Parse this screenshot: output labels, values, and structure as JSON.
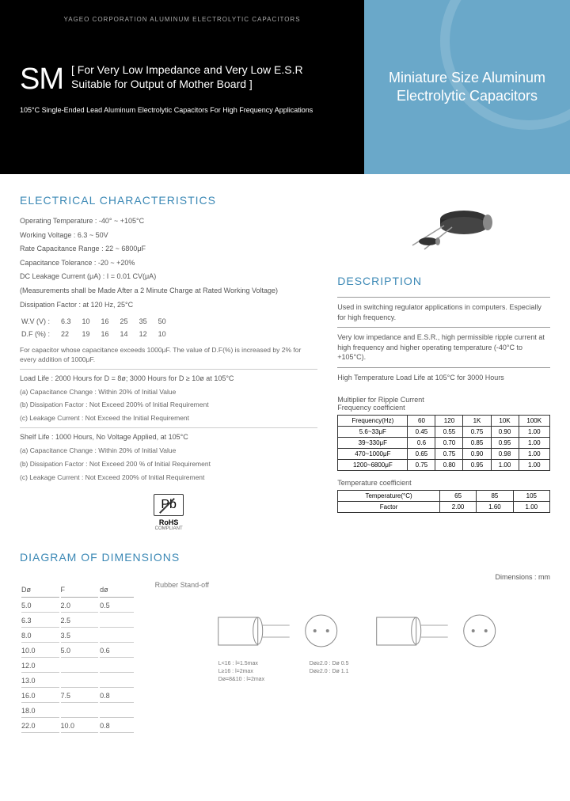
{
  "header": {
    "corp": "YAGEO CORPORATION ALUMINUM ELECTROLYTIC CAPACITORS",
    "badge": "SM",
    "desc": "[ For Very Low Impedance and Very Low E.S.R Suitable for Output of Mother Board ]",
    "sub": "105°C Single-Ended Lead Aluminum Electrolytic Capacitors For High Frequency Applications",
    "right_title": "Miniature Size Aluminum Electrolytic Capacitors",
    "colors": {
      "left_bg": "#000000",
      "right_bg": "#6aa8c9",
      "accent": "#3b88b5"
    }
  },
  "electrical": {
    "title": "ELECTRICAL CHARACTERISTICS",
    "lines": [
      "Operating Temperature : -40° ~ +105°C",
      "Working Voltage : 6.3 ~ 50V",
      "Rate Capacitance Range : 22 ~ 6800μF",
      "Capacitance Tolerance : -20 ~ +20%",
      "DC Leakage Current (μA) : I = 0.01 CV(μA)",
      "(Measurements shall be Made After a 2 Minute Charge at Rated Working Voltage)"
    ],
    "df_label": "Dissipation Factor : at 120 Hz, 25°C",
    "df_headers": [
      "W.V (V) :",
      "6.3",
      "10",
      "16",
      "25",
      "35",
      "50"
    ],
    "df_values": [
      "D.F (%) :",
      "22",
      "19",
      "16",
      "14",
      "12",
      "10"
    ],
    "df_note": "For capacitor whose capacitance exceeds 1000μF. The value of D.F(%) is increased by 2% for every addition of 1000μF.",
    "load_life": "Load Life : 2000 Hours for D = 8ø; 3000 Hours for D ≥ 10ø at 105°C",
    "load_items": [
      "(a) Capacitance Change : Within 20% of Initial Value",
      "(b) Dissipation Factor : Not Exceed 200% of Initial Requirement",
      "(c) Leakage Current : Not Exceed the Initial Requirement"
    ],
    "shelf_life": "Shelf Life : 1000 Hours, No Voltage Applied, at 105°C",
    "shelf_items": [
      "(a) Capacitance Change : Within 20% of Initial Value",
      "(b) Dissipation Factor : Not Exceed 200 % of Initial Requirement",
      "(c) Leakage Current : Not Exceed 200% of Initial Requirement"
    ]
  },
  "description": {
    "title": "DESCRIPTION",
    "items": [
      "Used in switching regulator applications in computers. Especially for high frequency.",
      "Very low impedance and E.S.R., high permissible ripple current at high frequency and higher operating temperature (-40°C to +105°C).",
      "High Temperature Load Life at 105°C for 3000 Hours"
    ]
  },
  "ripple": {
    "label1": "Multiplier for Ripple Current",
    "label2": "Frequency coefficient",
    "freq_headers": [
      "Frequency(Hz)",
      "60",
      "120",
      "1K",
      "10K",
      "100K"
    ],
    "freq_rows": [
      [
        "5.6~33μF",
        "0.45",
        "0.55",
        "0.75",
        "0.90",
        "1.00"
      ],
      [
        "39~330μF",
        "0.6",
        "0.70",
        "0.85",
        "0.95",
        "1.00"
      ],
      [
        "470~1000μF",
        "0.65",
        "0.75",
        "0.90",
        "0.98",
        "1.00"
      ],
      [
        "1200~6800μF",
        "0.75",
        "0.80",
        "0.95",
        "1.00",
        "1.00"
      ]
    ],
    "temp_label": "Temperature coefficient",
    "temp_headers": [
      "Temperature(°C)",
      "65",
      "85",
      "105"
    ],
    "temp_row": [
      "Factor",
      "2.00",
      "1.60",
      "1.00"
    ]
  },
  "rohs": {
    "symbol": "Pb",
    "text": "RoHS",
    "sub": "COMPLIANT"
  },
  "dimensions": {
    "title": "DIAGRAM OF DIMENSIONS",
    "unit": "Dimensions : mm",
    "headers": [
      "Dø",
      "F",
      "dø"
    ],
    "rows": [
      [
        "5.0",
        "2.0",
        "0.5"
      ],
      [
        "6.3",
        "2.5",
        ""
      ],
      [
        "8.0",
        "3.5",
        ""
      ],
      [
        "10.0",
        "5.0",
        "0.6"
      ],
      [
        "12.0",
        "",
        ""
      ],
      [
        "13.0",
        "",
        ""
      ],
      [
        "16.0",
        "7.5",
        "0.8"
      ],
      [
        "18.0",
        "",
        ""
      ],
      [
        "22.0",
        "10.0",
        "0.8"
      ]
    ],
    "standoff_label": "Rubber Stand-off",
    "notes": [
      "L<16 : l=1.5max",
      "L≥16 : l=2max",
      "Dø = 8&10 : l=2max"
    ],
    "notes2": [
      "Dø ≥ 2.0 : Dø 0.5",
      "Dø ≥ 2.0 : Dø 1.1"
    ]
  }
}
